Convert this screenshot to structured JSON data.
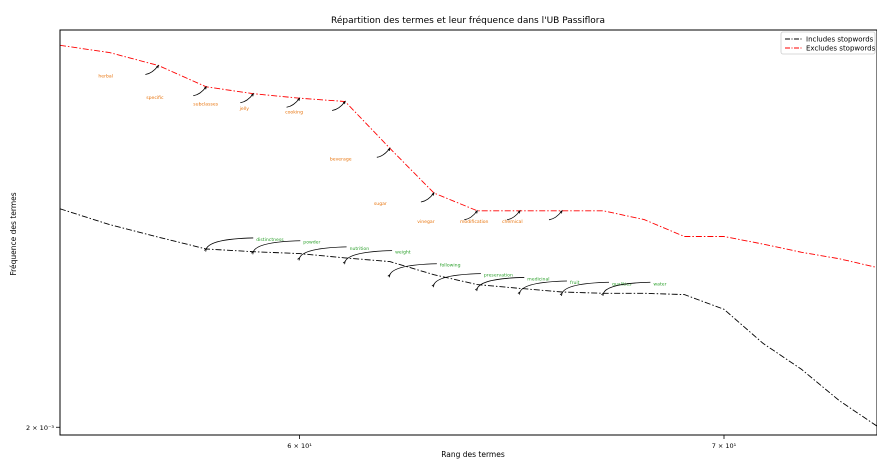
{
  "chart_data": {
    "type": "line",
    "title": "Répartition des termes et leur fréquence dans l'UB Passiflora",
    "xlabel": "Rang des termes",
    "ylabel": "Fréquence des termes",
    "x_scale": "log",
    "y_scale": "log",
    "xlim": [
      55,
      74
    ],
    "ylim": [
      0.00198,
      0.00335
    ],
    "x_ticks": [
      {
        "value": 60,
        "label": "6 × 10¹"
      },
      {
        "value": 70,
        "label": "7 × 10¹"
      }
    ],
    "y_ticks": [
      {
        "value": 0.002,
        "label": "2 × 10⁻³"
      }
    ],
    "legend": {
      "position": "top-right"
    },
    "series": [
      {
        "name": "Includes stopwords",
        "color": "#000000",
        "style": "dashdot",
        "x": [
          55,
          56,
          57,
          58,
          59,
          60,
          61,
          62,
          63,
          64,
          65,
          66,
          67,
          68,
          69,
          70,
          71,
          72,
          73,
          74
        ],
        "y": [
          0.002656,
          0.002602,
          0.00256,
          0.002521,
          0.002512,
          0.002506,
          0.002492,
          0.00248,
          0.002438,
          0.002407,
          0.002395,
          0.002384,
          0.00238,
          0.00238,
          0.002376,
          0.002331,
          0.00223,
          0.002156,
          0.00207,
          0.002003
        ],
        "annotations": [
          {
            "x": 58,
            "y": 0.002521,
            "label": "distinctness"
          },
          {
            "x": 59,
            "y": 0.002512,
            "label": "powder"
          },
          {
            "x": 60,
            "y": 0.002492,
            "label": "nutrition"
          },
          {
            "x": 61,
            "y": 0.00248,
            "label": "weight"
          },
          {
            "x": 62,
            "y": 0.002438,
            "label": "following"
          },
          {
            "x": 63,
            "y": 0.002407,
            "label": "preservation"
          },
          {
            "x": 64,
            "y": 0.002395,
            "label": "medicinal"
          },
          {
            "x": 65,
            "y": 0.002384,
            "label": "fruit"
          },
          {
            "x": 66,
            "y": 0.00238,
            "label": "qualities"
          },
          {
            "x": 67,
            "y": 0.00238,
            "label": "water"
          }
        ]
      },
      {
        "name": "Excludes stopwords",
        "color": "#ff0000",
        "style": "dashdot",
        "x": [
          55,
          56,
          57,
          58,
          59,
          60,
          61,
          62,
          63,
          64,
          65,
          66,
          67,
          68,
          69,
          70,
          71,
          72,
          73,
          74
        ],
        "y": [
          0.003284,
          0.003253,
          0.003199,
          0.003112,
          0.003084,
          0.003066,
          0.003053,
          0.002873,
          0.002711,
          0.002649,
          0.002649,
          0.002649,
          0.002649,
          0.002619,
          0.002562,
          0.002562,
          0.002537,
          0.00251,
          0.002489,
          0.002461
        ],
        "annotations": [
          {
            "x": 57,
            "y": 0.003199,
            "label": "herbal"
          },
          {
            "x": 58,
            "y": 0.003112,
            "label": "specific"
          },
          {
            "x": 59,
            "y": 0.003084,
            "label": "subclasses"
          },
          {
            "x": 60,
            "y": 0.003066,
            "label": "jelly"
          },
          {
            "x": 61,
            "y": 0.003053,
            "label": "cooking"
          },
          {
            "x": 62,
            "y": 0.002873,
            "label": "beverage"
          },
          {
            "x": 63,
            "y": 0.002711,
            "label": "sugar"
          },
          {
            "x": 64,
            "y": 0.002649,
            "label": "vinegar"
          },
          {
            "x": 65,
            "y": 0.002649,
            "label": "modification"
          },
          {
            "x": 66,
            "y": 0.002649,
            "label": "chemical"
          }
        ]
      }
    ]
  },
  "annotation_colors": {
    "Includes stopwords": "#2ca02c",
    "Excludes stopwords": "#e8750f"
  }
}
